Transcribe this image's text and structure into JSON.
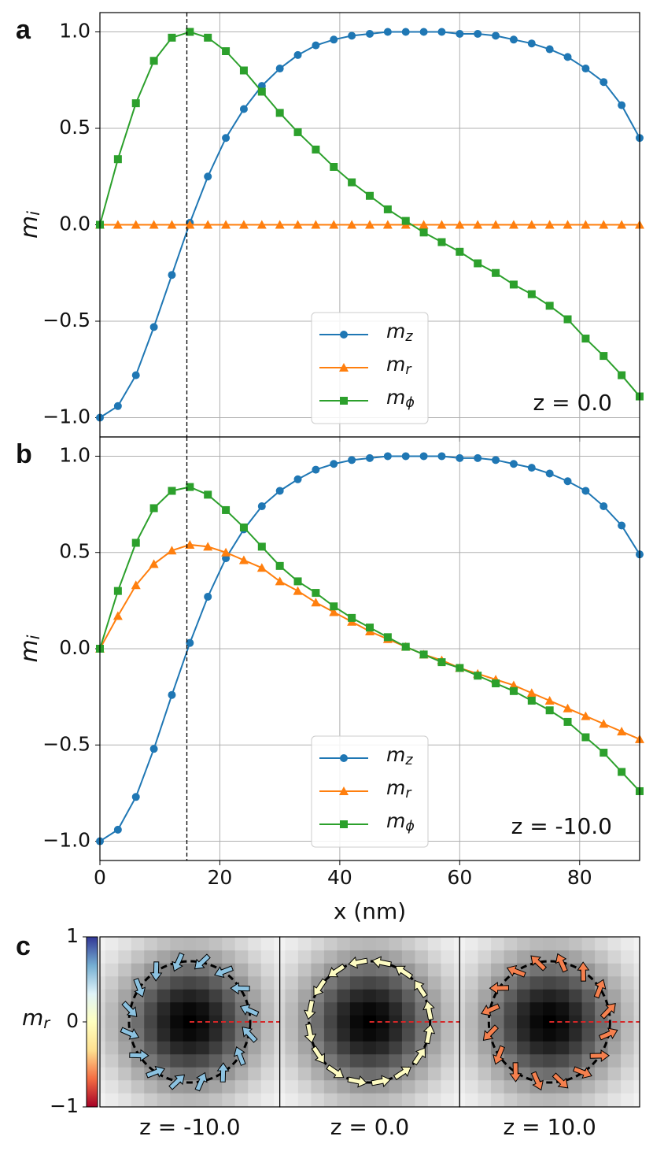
{
  "chart_data": [
    {
      "type": "line",
      "panel_label": "a",
      "ylabel": "mi",
      "annotation": "z = 0.0",
      "x": [
        0,
        3,
        6,
        9,
        12,
        15,
        18,
        21,
        24,
        27,
        30,
        33,
        36,
        39,
        42,
        45,
        48,
        51,
        54,
        57,
        60,
        63,
        66,
        69,
        72,
        75,
        78,
        81,
        84,
        87,
        90
      ],
      "series": [
        {
          "name": "mz",
          "color": "#1f77b4",
          "marker": "circle",
          "values": [
            -1.0,
            -0.94,
            -0.78,
            -0.53,
            -0.26,
            0.01,
            0.25,
            0.45,
            0.6,
            0.72,
            0.81,
            0.88,
            0.93,
            0.96,
            0.98,
            0.99,
            1.0,
            1.0,
            1.0,
            1.0,
            0.99,
            0.99,
            0.98,
            0.96,
            0.94,
            0.91,
            0.87,
            0.81,
            0.74,
            0.62,
            0.45
          ]
        },
        {
          "name": "mr",
          "color": "#ff7f0e",
          "marker": "triangle",
          "values": [
            0,
            0,
            0,
            0,
            0,
            0,
            0,
            0,
            0,
            0,
            0,
            0,
            0,
            0,
            0,
            0,
            0,
            0,
            0,
            0,
            0,
            0,
            0,
            0,
            0,
            0,
            0,
            0,
            0,
            0,
            0
          ]
        },
        {
          "name": "mϕ",
          "color": "#2ca02c",
          "marker": "square",
          "values": [
            0,
            0.34,
            0.63,
            0.85,
            0.97,
            1.0,
            0.97,
            0.9,
            0.8,
            0.69,
            0.58,
            0.48,
            0.39,
            0.3,
            0.22,
            0.15,
            0.08,
            0.02,
            -0.04,
            -0.09,
            -0.14,
            -0.2,
            -0.25,
            -0.31,
            -0.36,
            -0.42,
            -0.49,
            -0.59,
            -0.68,
            -0.78,
            -0.89
          ]
        }
      ],
      "vline": 14.5,
      "xlim": [
        0,
        90
      ],
      "xticks": [
        0,
        20,
        40,
        60,
        80
      ],
      "show_xticklabels": false,
      "ylim": [
        -1.1,
        1.1
      ],
      "yticks": [
        {
          "value": -1,
          "label": "−1.0"
        },
        {
          "value": -0.5,
          "label": "−0.5"
        },
        {
          "value": 0,
          "label": "0.0"
        },
        {
          "value": 0.5,
          "label": "0.5"
        },
        {
          "value": 1,
          "label": "1.0"
        }
      ],
      "grid": true,
      "legend": "lower center"
    },
    {
      "type": "line",
      "panel_label": "b",
      "ylabel": "mi",
      "xlabel": "x (nm)",
      "annotation": "z = -10.0",
      "x": [
        0,
        3,
        6,
        9,
        12,
        15,
        18,
        21,
        24,
        27,
        30,
        33,
        36,
        39,
        42,
        45,
        48,
        51,
        54,
        57,
        60,
        63,
        66,
        69,
        72,
        75,
        78,
        81,
        84,
        87,
        90
      ],
      "series": [
        {
          "name": "mz",
          "color": "#1f77b4",
          "marker": "circle",
          "values": [
            -1.0,
            -0.94,
            -0.77,
            -0.52,
            -0.24,
            0.03,
            0.27,
            0.47,
            0.62,
            0.74,
            0.82,
            0.88,
            0.93,
            0.96,
            0.98,
            0.99,
            1.0,
            1.0,
            1.0,
            1.0,
            0.99,
            0.99,
            0.98,
            0.96,
            0.94,
            0.91,
            0.87,
            0.82,
            0.74,
            0.64,
            0.49
          ]
        },
        {
          "name": "mr",
          "color": "#ff7f0e",
          "marker": "triangle",
          "values": [
            0,
            0.17,
            0.33,
            0.44,
            0.51,
            0.54,
            0.53,
            0.5,
            0.46,
            0.42,
            0.35,
            0.3,
            0.24,
            0.19,
            0.14,
            0.09,
            0.05,
            0.01,
            -0.03,
            -0.06,
            -0.1,
            -0.13,
            -0.16,
            -0.19,
            -0.23,
            -0.27,
            -0.31,
            -0.35,
            -0.39,
            -0.43,
            -0.47
          ]
        },
        {
          "name": "mϕ",
          "color": "#2ca02c",
          "marker": "square",
          "values": [
            0,
            0.3,
            0.55,
            0.73,
            0.82,
            0.84,
            0.8,
            0.72,
            0.63,
            0.53,
            0.43,
            0.35,
            0.29,
            0.22,
            0.16,
            0.11,
            0.06,
            0.01,
            -0.03,
            -0.07,
            -0.1,
            -0.14,
            -0.18,
            -0.22,
            -0.27,
            -0.32,
            -0.38,
            -0.46,
            -0.54,
            -0.64,
            -0.74
          ]
        }
      ],
      "vline": 14.5,
      "xlim": [
        0,
        90
      ],
      "xticks": [
        0,
        20,
        40,
        60,
        80
      ],
      "show_xticklabels": true,
      "ylim": [
        -1.1,
        1.1
      ],
      "yticks": [
        {
          "value": -1,
          "label": "−1.0"
        },
        {
          "value": -0.5,
          "label": "−0.5"
        },
        {
          "value": 0,
          "label": "0.0"
        },
        {
          "value": 0.5,
          "label": "0.5"
        },
        {
          "value": 1,
          "label": "1.0"
        }
      ],
      "grid": true,
      "legend": "lower center"
    },
    {
      "type": "image_grid",
      "panel_label": "c",
      "colorbar": {
        "label": "mr",
        "lim": [
          -1,
          1
        ],
        "ticks": [
          {
            "value": -1,
            "label": "−1"
          },
          0,
          1
        ],
        "colors": [
          "#a50026",
          "#f46d43",
          "#fee090",
          "#ffffbf",
          "#e0f3f8",
          "#74add1",
          "#313695"
        ]
      },
      "panels": [
        {
          "caption": "z = -10.0",
          "arrow_color": "#8cc2e0"
        },
        {
          "caption": "z = 0.0",
          "arrow_color": "#fdfbc2"
        },
        {
          "caption": "z = 10.0",
          "arrow_color": "#f5804e"
        }
      ]
    }
  ]
}
